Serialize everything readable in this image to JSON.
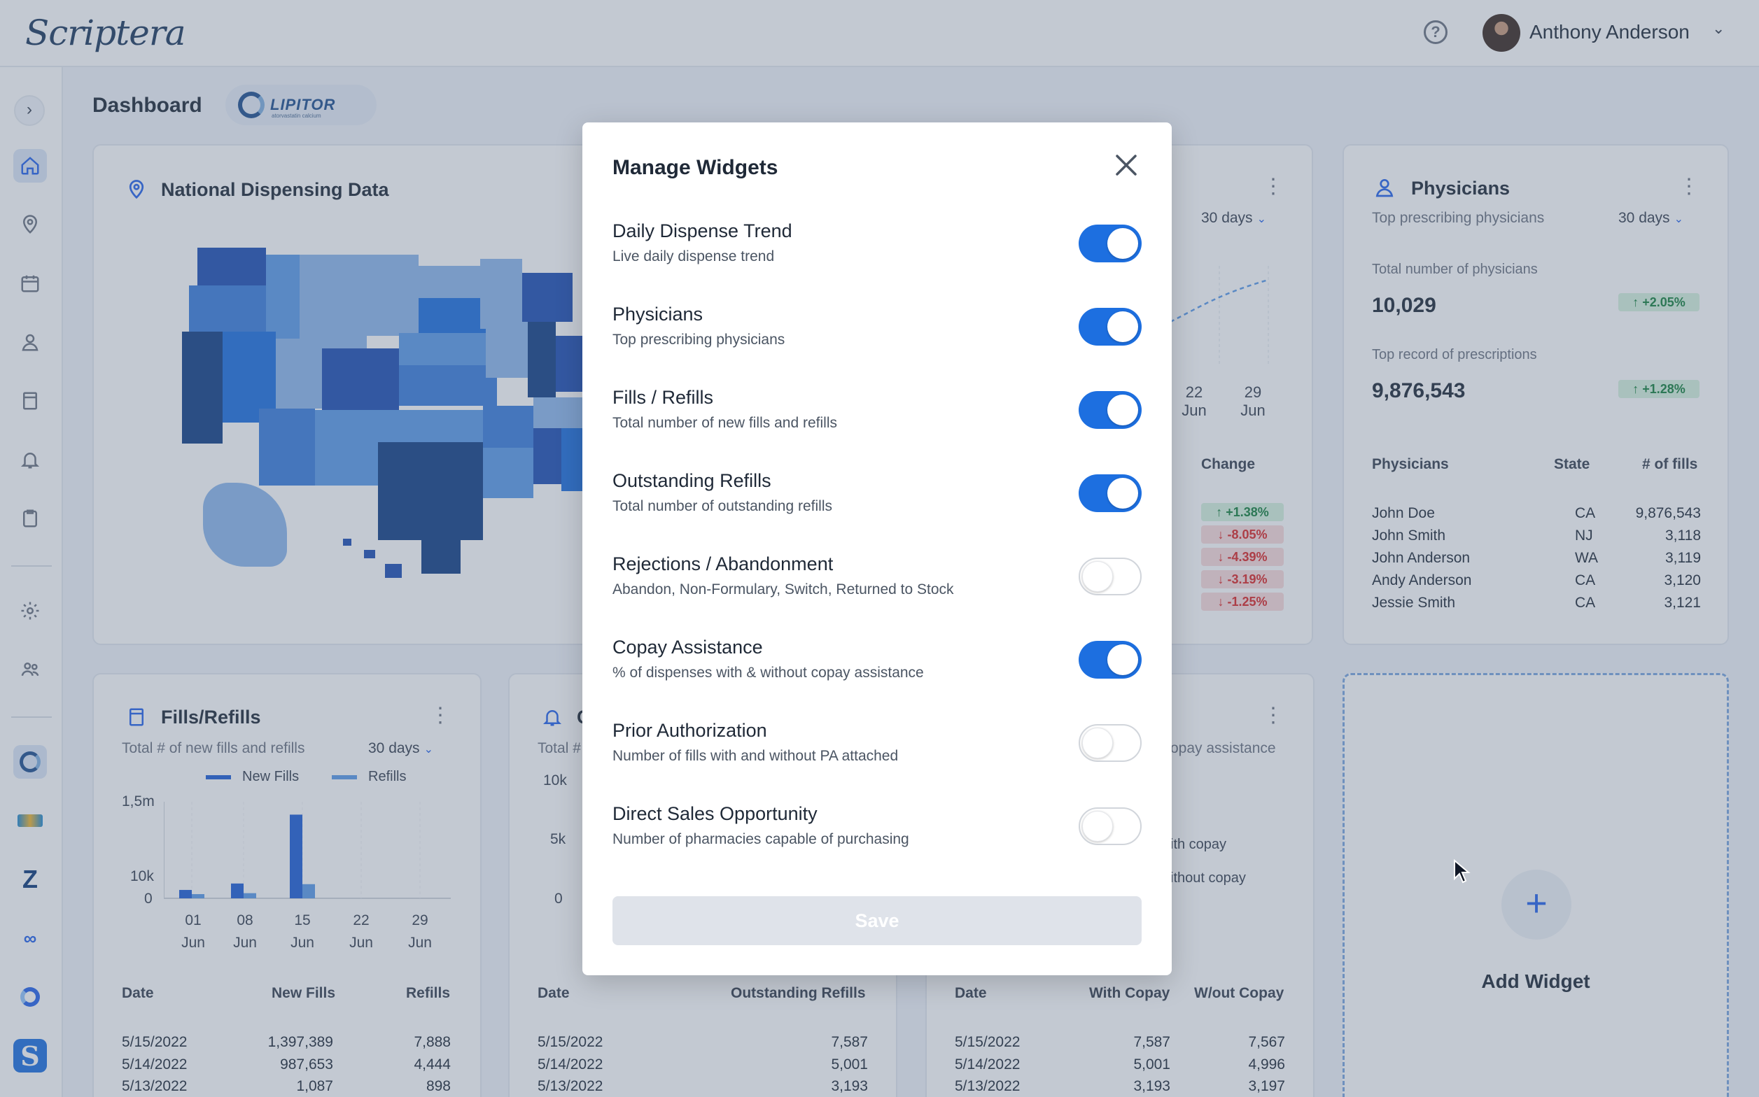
{
  "app": {
    "logo": "Scriptera"
  },
  "header": {
    "help_icon": "?",
    "user_name": "Anthony Anderson"
  },
  "page": {
    "title": "Dashboard",
    "brand": {
      "name": "LIPITOR",
      "tagline": "atorvastatin calcium"
    }
  },
  "cards": {
    "national": {
      "title": "National Dispensing Data"
    },
    "daily_trend": {
      "range": "30 days",
      "x_labels": [
        {
          "day": "22",
          "month": "Jun"
        },
        {
          "day": "29",
          "month": "Jun"
        }
      ],
      "change_header": "Change",
      "changes": [
        {
          "text": "+1.38%",
          "dir": "up"
        },
        {
          "text": "-8.05%",
          "dir": "down"
        },
        {
          "text": "-4.39%",
          "dir": "down"
        },
        {
          "text": "-3.19%",
          "dir": "down"
        },
        {
          "text": "-1.25%",
          "dir": "down"
        }
      ]
    },
    "physicians": {
      "title": "Physicians",
      "subtitle": "Top prescribing physicians",
      "range": "30 days",
      "total_label": "Total number of physicians",
      "total_value": "10,029",
      "total_change": "+2.05%",
      "record_label": "Top record of prescriptions",
      "record_value": "9,876,543",
      "record_change": "+1.28%",
      "columns": [
        "Physicians",
        "State",
        "# of fills"
      ],
      "rows": [
        {
          "name": "John Doe",
          "state": "CA",
          "fills": "9,876,543"
        },
        {
          "name": "John Smith",
          "state": "NJ",
          "fills": "3,118"
        },
        {
          "name": "John Anderson",
          "state": "WA",
          "fills": "3,119"
        },
        {
          "name": "Andy Anderson",
          "state": "CA",
          "fills": "3,120"
        },
        {
          "name": "Jessie Smith",
          "state": "CA",
          "fills": "3,121"
        }
      ]
    },
    "fills": {
      "title": "Fills/Refills",
      "subtitle": "Total # of new fills and refills",
      "range": "30 days",
      "legend": [
        "New Fills",
        "Refills"
      ],
      "y_labels": [
        "1,5m",
        "10k",
        "0"
      ],
      "x_labels": [
        {
          "day": "01",
          "month": "Jun"
        },
        {
          "day": "08",
          "month": "Jun"
        },
        {
          "day": "15",
          "month": "Jun"
        },
        {
          "day": "22",
          "month": "Jun"
        },
        {
          "day": "29",
          "month": "Jun"
        }
      ],
      "columns": [
        "Date",
        "New Fills",
        "Refills"
      ],
      "rows": [
        {
          "date": "5/15/2022",
          "a": "1,397,389",
          "b": "7,888"
        },
        {
          "date": "5/14/2022",
          "a": "987,653",
          "b": "4,444"
        },
        {
          "date": "5/13/2022",
          "a": "1,087",
          "b": "898"
        }
      ]
    },
    "outstanding": {
      "title_fragment": "C",
      "subtitle_fragment": "Total #",
      "y_labels": [
        "10k",
        "5k",
        "0"
      ],
      "columns": [
        "Date",
        "Outstanding Refills"
      ],
      "rows": [
        {
          "date": "5/15/2022",
          "a": "7,587"
        },
        {
          "date": "5/14/2022",
          "a": "5,001"
        },
        {
          "date": "5/13/2022",
          "a": "3,193"
        }
      ]
    },
    "copay": {
      "subtitle_fragment": "opay assistance",
      "legend_fragments": [
        "ith copay",
        "ithout copay"
      ],
      "columns": [
        "Date",
        "With Copay",
        "W/out Copay"
      ],
      "rows": [
        {
          "date": "5/15/2022",
          "a": "7,587",
          "b": "7,567"
        },
        {
          "date": "5/14/2022",
          "a": "5,001",
          "b": "4,996"
        },
        {
          "date": "5/13/2022",
          "a": "3,193",
          "b": "3,197"
        }
      ]
    },
    "add_widget": {
      "icon": "+",
      "label": "Add Widget"
    }
  },
  "chart_data": {
    "type": "bar",
    "title": "Fills/Refills",
    "categories": [
      "01 Jun",
      "08 Jun",
      "15 Jun",
      "22 Jun",
      "29 Jun"
    ],
    "series": [
      {
        "name": "New Fills",
        "values": [
          130000,
          230000,
          1300000,
          0,
          0
        ]
      },
      {
        "name": "Refills",
        "values": [
          40000,
          80000,
          220000,
          0,
          0
        ]
      }
    ],
    "ylim": [
      0,
      1500000
    ],
    "colors": {
      "New Fills": "#1f5fd6",
      "Refills": "#5b9bea"
    }
  },
  "modal": {
    "title": "Manage Widgets",
    "save_label": "Save",
    "widgets": [
      {
        "title": "Daily Dispense Trend",
        "desc": "Live daily dispense trend",
        "enabled": true
      },
      {
        "title": "Physicians",
        "desc": "Top prescribing physicians",
        "enabled": true
      },
      {
        "title": "Fills / Refills",
        "desc": "Total number of new fills and refills",
        "enabled": true
      },
      {
        "title": "Outstanding Refills",
        "desc": "Total number of outstanding refills",
        "enabled": true
      },
      {
        "title": "Rejections / Abandonment",
        "desc": "Abandon, Non-Formulary, Switch, Returned to Stock",
        "enabled": false
      },
      {
        "title": "Copay Assistance",
        "desc": "% of dispenses with & without copay assistance",
        "enabled": true
      },
      {
        "title": "Prior Authorization",
        "desc": "Number of fills with and without PA attached",
        "enabled": false
      },
      {
        "title": "Direct Sales Opportunity",
        "desc": "Number of pharmacies capable of purchasing",
        "enabled": false
      }
    ]
  },
  "colors": {
    "accent": "#1d6fe0",
    "up": "#15803d",
    "down": "#dc2626"
  }
}
